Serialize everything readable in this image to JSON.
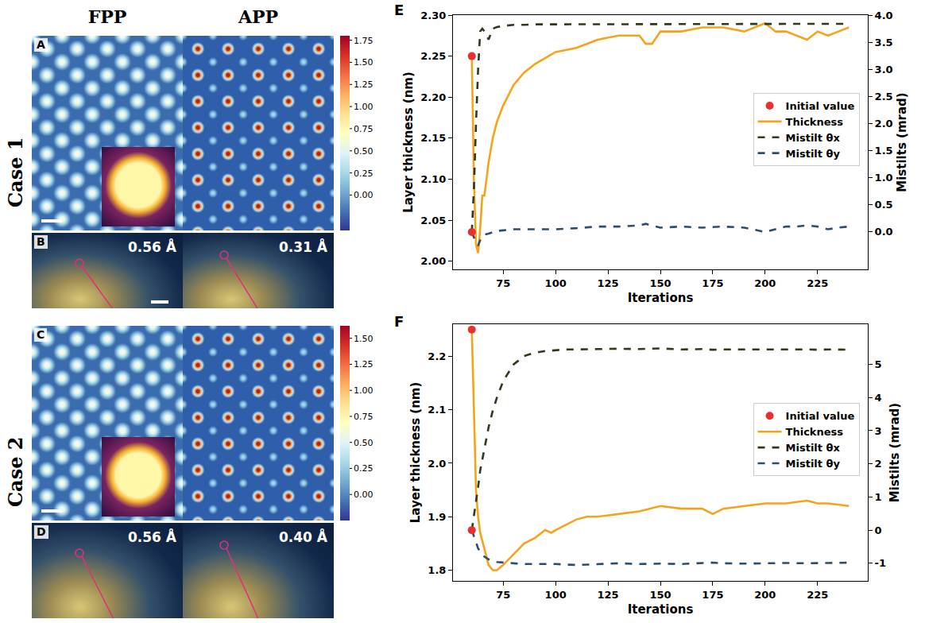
{
  "columns": [
    "FPP",
    "APP"
  ],
  "rows": [
    {
      "label": "Case 1",
      "image_panel": "A",
      "pattern_panel": "B",
      "resolutions": [
        "0.56 Å",
        "0.31 Å"
      ],
      "colorbar": {
        "lim": [
          -0.4,
          1.8
        ],
        "ticks": [
          {
            "value": 0,
            "label": "0.00"
          },
          0.25,
          {
            "value": 0.5,
            "label": "0.50"
          },
          0.75,
          {
            "value": 1,
            "label": "1.00"
          },
          1.25,
          {
            "value": 1.5,
            "label": "1.50"
          },
          1.75
        ]
      }
    },
    {
      "label": "Case 2",
      "image_panel": "C",
      "pattern_panel": "D",
      "resolutions": [
        "0.56 Å",
        "0.40 Å"
      ],
      "colorbar": {
        "lim": [
          -0.25,
          1.62
        ],
        "ticks": [
          {
            "value": 0,
            "label": "0.00"
          },
          0.25,
          {
            "value": 0.5,
            "label": "0.50"
          },
          0.75,
          {
            "value": 1,
            "label": "1.00"
          },
          1.25,
          {
            "value": 1.5,
            "label": "1.50"
          }
        ]
      }
    }
  ],
  "chart_data": [
    {
      "panel": "E",
      "type": "line",
      "xlabel": "Iterations",
      "ylabel": "Layer thickness (nm)",
      "y2label": "Mistilts (mrad)",
      "xlim": [
        51,
        249
      ],
      "xticks": [
        75,
        100,
        125,
        150,
        175,
        200,
        225
      ],
      "ylim": [
        1.99,
        2.3
      ],
      "yticks": [
        {
          "value": 2.0,
          "label": "2.00"
        },
        2.05,
        {
          "value": 2.1,
          "label": "2.10"
        },
        2.15,
        {
          "value": 2.2,
          "label": "2.20"
        },
        2.25,
        {
          "value": 2.3,
          "label": "2.30"
        }
      ],
      "y2lim": [
        -0.69,
        4.0
      ],
      "y2ticks": [
        {
          "value": 0,
          "label": "0.0"
        },
        0.5,
        {
          "value": 1,
          "label": "1.0"
        },
        1.5,
        {
          "value": 2,
          "label": "2.0"
        },
        2.5,
        {
          "value": 3,
          "label": "3.0"
        },
        3.5,
        {
          "value": 4,
          "label": "4.0"
        }
      ],
      "grid": false,
      "legend": "right",
      "series": [
        {
          "name": "Initial value",
          "type": "scatter",
          "marker": "circle",
          "color": "#e8302f",
          "axis": "y",
          "x": [
            60
          ],
          "values": [
            2.25
          ]
        },
        {
          "name": "Initial value",
          "type": "scatter",
          "marker": "circle",
          "color": "#e8302f",
          "axis": "y2",
          "x": [
            60
          ],
          "values": [
            0
          ]
        },
        {
          "name": "Thickness",
          "type": "line",
          "line_style": "solid",
          "color": "#f5a31a",
          "axis": "y",
          "x": [
            60,
            61,
            62,
            63,
            64,
            65,
            66,
            68,
            70,
            72,
            75,
            80,
            85,
            90,
            100,
            110,
            120,
            130,
            140,
            143,
            146,
            150,
            160,
            170,
            180,
            190,
            200,
            205,
            210,
            215,
            220,
            225,
            230,
            235,
            240
          ],
          "values": [
            2.25,
            2.1,
            2.02,
            2.01,
            2.04,
            2.08,
            2.08,
            2.12,
            2.15,
            2.17,
            2.19,
            2.215,
            2.23,
            2.24,
            2.255,
            2.26,
            2.27,
            2.275,
            2.275,
            2.265,
            2.265,
            2.28,
            2.28,
            2.285,
            2.285,
            2.28,
            2.29,
            2.28,
            2.28,
            2.275,
            2.27,
            2.28,
            2.275,
            2.28,
            2.285
          ]
        },
        {
          "name": "Mistilt θx",
          "type": "line",
          "line_style": "dashed",
          "color": "#2d3a1e",
          "axis": "y2",
          "x": [
            60,
            61,
            62,
            63,
            64,
            65,
            66,
            68,
            70,
            72,
            75,
            80,
            85,
            90,
            100,
            110,
            120,
            130,
            140,
            143,
            146,
            150,
            160,
            170,
            180,
            190,
            200,
            205,
            210,
            215,
            220,
            225,
            230,
            235,
            240
          ],
          "values": [
            0,
            0.8,
            2.0,
            3.0,
            3.7,
            3.75,
            3.7,
            3.55,
            3.75,
            3.78,
            3.8,
            3.82,
            3.82,
            3.83,
            3.83,
            3.83,
            3.84,
            3.84,
            3.84,
            3.83,
            3.84,
            3.84,
            3.84,
            3.84,
            3.84,
            3.84,
            3.84,
            3.83,
            3.84,
            3.83,
            3.84,
            3.84,
            3.83,
            3.84,
            3.84
          ]
        },
        {
          "name": "Mistilt θy",
          "type": "line",
          "line_style": "dashed",
          "color": "#2f4d6a",
          "axis": "y2",
          "x": [
            60,
            61,
            62,
            63,
            64,
            65,
            66,
            68,
            70,
            72,
            75,
            80,
            85,
            90,
            100,
            110,
            120,
            130,
            140,
            143,
            146,
            150,
            160,
            170,
            180,
            190,
            200,
            205,
            210,
            215,
            220,
            225,
            230,
            235,
            240
          ],
          "values": [
            0,
            -0.1,
            -0.2,
            -0.25,
            -0.15,
            -0.1,
            -0.05,
            -0.03,
            0.0,
            0.02,
            0.03,
            0.05,
            0.05,
            0.05,
            0.05,
            0.07,
            0.1,
            0.1,
            0.12,
            0.15,
            0.12,
            0.08,
            0.1,
            0.08,
            0.1,
            0.08,
            0.0,
            0.05,
            0.1,
            0.1,
            0.12,
            0.1,
            0.05,
            0.08,
            0.1
          ]
        }
      ]
    },
    {
      "panel": "F",
      "type": "line",
      "xlabel": "Iterations",
      "ylabel": "Layer thickness (nm)",
      "y2label": "Mistilts (mrad)",
      "xlim": [
        51,
        249
      ],
      "xticks": [
        75,
        100,
        125,
        150,
        175,
        200,
        225
      ],
      "ylim": [
        1.78,
        2.26
      ],
      "yticks": [
        1.8,
        1.9,
        {
          "value": 2.0,
          "label": "2.0"
        },
        2.1,
        2.2
      ],
      "y2lim": [
        -1.53,
        6.21
      ],
      "y2ticks": [
        -1,
        0,
        1,
        2,
        3,
        4,
        5
      ],
      "grid": false,
      "legend": "right",
      "series": [
        {
          "name": "Initial value",
          "type": "scatter",
          "marker": "circle",
          "color": "#e8302f",
          "axis": "y",
          "x": [
            60
          ],
          "values": [
            2.25
          ]
        },
        {
          "name": "Initial value",
          "type": "scatter",
          "marker": "circle",
          "color": "#e8302f",
          "axis": "y2",
          "x": [
            60
          ],
          "values": [
            0
          ]
        },
        {
          "name": "Thickness",
          "type": "line",
          "line_style": "solid",
          "color": "#f5a31a",
          "axis": "y",
          "x": [
            60,
            61,
            62,
            63,
            64,
            66,
            68,
            70,
            72,
            75,
            80,
            85,
            90,
            95,
            98,
            100,
            105,
            110,
            115,
            120,
            130,
            140,
            150,
            160,
            170,
            175,
            180,
            190,
            200,
            210,
            220,
            225,
            230,
            240
          ],
          "values": [
            2.25,
            2.1,
            1.95,
            1.9,
            1.87,
            1.84,
            1.81,
            1.8,
            1.8,
            1.81,
            1.83,
            1.85,
            1.86,
            1.875,
            1.87,
            1.875,
            1.885,
            1.895,
            1.9,
            1.9,
            1.905,
            1.91,
            1.92,
            1.915,
            1.915,
            1.905,
            1.915,
            1.92,
            1.925,
            1.925,
            1.93,
            1.925,
            1.925,
            1.92
          ]
        },
        {
          "name": "Mistilt θx",
          "type": "line",
          "line_style": "dashed",
          "color": "#2d3a1e",
          "axis": "y2",
          "x": [
            60,
            61,
            62,
            63,
            64,
            66,
            68,
            70,
            72,
            75,
            80,
            85,
            90,
            95,
            98,
            100,
            105,
            110,
            115,
            120,
            130,
            140,
            150,
            160,
            170,
            175,
            180,
            190,
            200,
            210,
            220,
            225,
            230,
            240
          ],
          "values": [
            0,
            0.4,
            0.9,
            1.3,
            1.8,
            2.5,
            3.1,
            3.6,
            4.0,
            4.5,
            5.0,
            5.25,
            5.35,
            5.4,
            5.42,
            5.43,
            5.45,
            5.45,
            5.46,
            5.46,
            5.47,
            5.46,
            5.48,
            5.45,
            5.46,
            5.44,
            5.45,
            5.45,
            5.45,
            5.46,
            5.45,
            5.44,
            5.45,
            5.44
          ]
        },
        {
          "name": "Mistilt θy",
          "type": "line",
          "line_style": "dashed",
          "color": "#2f4d6a",
          "axis": "y2",
          "x": [
            60,
            61,
            62,
            63,
            64,
            66,
            68,
            70,
            72,
            75,
            80,
            85,
            90,
            95,
            98,
            100,
            105,
            110,
            115,
            120,
            130,
            140,
            150,
            160,
            170,
            175,
            180,
            190,
            200,
            210,
            220,
            225,
            230,
            240
          ],
          "values": [
            0,
            -0.2,
            -0.4,
            -0.55,
            -0.65,
            -0.8,
            -0.88,
            -0.93,
            -0.96,
            -0.98,
            -1.0,
            -1.02,
            -1.02,
            -1.03,
            -1.03,
            -1.02,
            -1.04,
            -1.05,
            -1.04,
            -1.03,
            -1.0,
            -1.02,
            -1.01,
            -1.02,
            -1.0,
            -0.98,
            -1.0,
            -1.01,
            -1.0,
            -0.99,
            -1.0,
            -1.0,
            -0.99,
            -0.98
          ]
        }
      ]
    }
  ]
}
